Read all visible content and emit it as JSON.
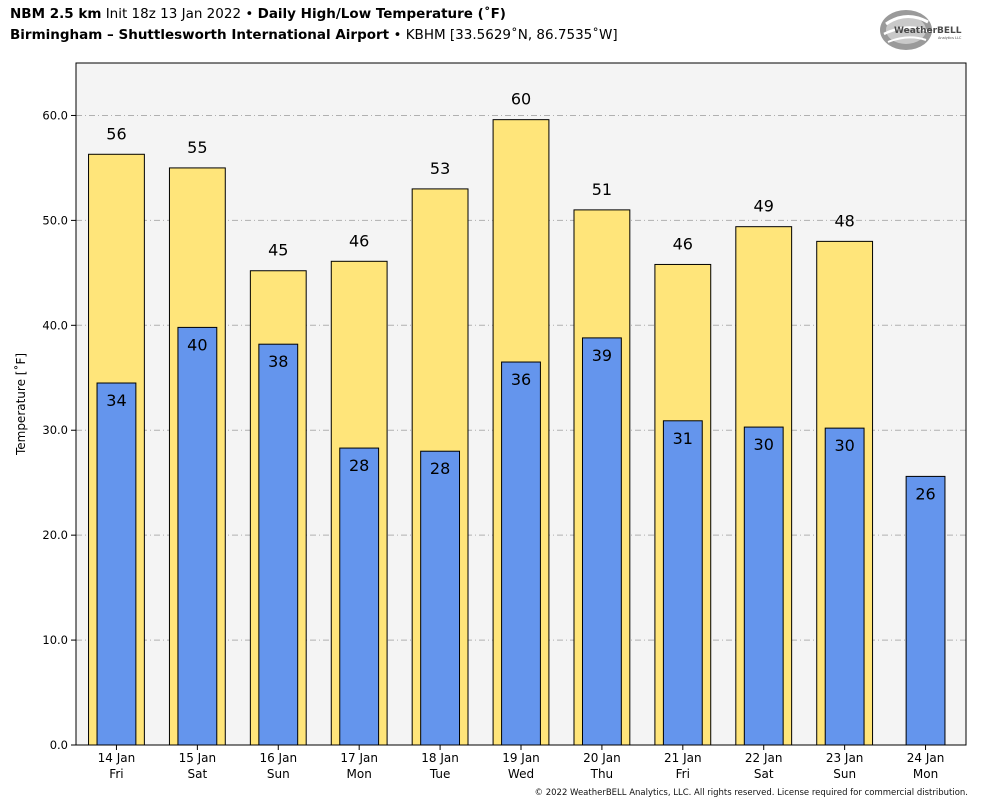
{
  "header": {
    "model": "NBM 2.5 km",
    "init": "Init 18z 13 Jan 2022",
    "bullet": "•",
    "product": "Daily High/Low Temperature (˚F)",
    "location": "Birmingham – Shuttlesworth International Airport",
    "station": "KBHM [33.5629˚N, 86.7535˚W]"
  },
  "logo": {
    "text": "WeatherBELL",
    "subtext": "Analytics LLC"
  },
  "copyright": "© 2022 WeatherBELL Analytics, LLC. All rights reserved. License required for commercial distribution.",
  "colors": {
    "high": "#FFE57A",
    "low": "#6495ED",
    "plot_bg": "#F4F4F4",
    "grid": "#B0B0B0"
  },
  "chart_data": {
    "type": "bar",
    "ylabel": "Temperature [˚F]",
    "ylim": [
      0,
      65
    ],
    "yticks": [
      "0.0",
      "10.0",
      "20.0",
      "30.0",
      "40.0",
      "50.0",
      "60.0"
    ],
    "grid": "horizontal dash-dot",
    "categories": [
      [
        "14 Jan",
        "Fri"
      ],
      [
        "15 Jan",
        "Sat"
      ],
      [
        "16 Jan",
        "Sun"
      ],
      [
        "17 Jan",
        "Mon"
      ],
      [
        "18 Jan",
        "Tue"
      ],
      [
        "19 Jan",
        "Wed"
      ],
      [
        "20 Jan",
        "Thu"
      ],
      [
        "21 Jan",
        "Fri"
      ],
      [
        "22 Jan",
        "Sat"
      ],
      [
        "23 Jan",
        "Sun"
      ],
      [
        "24 Jan",
        "Mon"
      ]
    ],
    "series": [
      {
        "key": "high",
        "values": [
          56.3,
          55.0,
          45.2,
          46.1,
          53.0,
          59.6,
          51.0,
          45.8,
          49.4,
          48.0,
          null
        ],
        "labels": [
          "56",
          "55",
          "45",
          "46",
          "53",
          "60",
          "51",
          "46",
          "49",
          "48",
          null
        ]
      },
      {
        "key": "low",
        "values": [
          34.5,
          39.8,
          38.2,
          28.3,
          28.0,
          36.5,
          38.8,
          30.9,
          30.3,
          30.2,
          25.6
        ],
        "labels": [
          "34",
          "40",
          "38",
          "28",
          "28",
          "36",
          "39",
          "31",
          "30",
          "30",
          "26"
        ]
      }
    ]
  }
}
